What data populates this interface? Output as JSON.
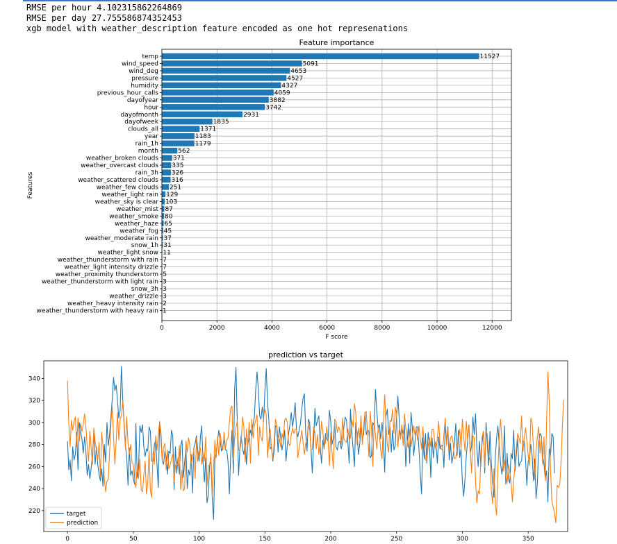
{
  "output_lines": [
    "RMSE per hour 4.102315862264869",
    "RMSE per day 27.755586874352453",
    "xgb model with weather_description feature encoded as one hot represenations"
  ],
  "chart_data": [
    {
      "type": "bar",
      "orientation": "horizontal",
      "title": "Feature importance",
      "xlabel": "F score",
      "ylabel": "Features",
      "xlim": [
        0,
        12700
      ],
      "xticks": [
        0,
        2000,
        4000,
        6000,
        8000,
        10000,
        12000
      ],
      "grid": true,
      "color": "#1f77b4",
      "categories": [
        "temp",
        "wind_speed",
        "wind_deg",
        "pressure",
        "humidity",
        "previous_hour_calls",
        "dayofyear",
        "hour",
        "dayofmonth",
        "dayofweek",
        "clouds_all",
        "year",
        "rain_1h",
        "month",
        "weather_broken clouds",
        "weather_overcast clouds",
        "rain_3h",
        "weather_scattered clouds",
        "weather_few clouds",
        "weather_light rain",
        "weather_sky is clear",
        "weather_mist",
        "weather_smoke",
        "weather_haze",
        "weather_fog",
        "weather_moderate rain",
        "snow_1h",
        "weather_light snow",
        "weather_thunderstorm with rain",
        "weather_light intensity drizzle",
        "weather_proximity thunderstorm",
        "weather_thunderstorm with light rain",
        "snow_3h",
        "weather_drizzle",
        "weather_heavy intensity rain",
        "weather_thunderstorm with heavy rain"
      ],
      "values": [
        11527,
        5091,
        4653,
        4527,
        4327,
        4059,
        3882,
        3742,
        2931,
        1835,
        1371,
        1183,
        1179,
        562,
        371,
        335,
        326,
        316,
        251,
        129,
        103,
        87,
        80,
        65,
        45,
        37,
        31,
        11,
        7,
        7,
        5,
        3,
        3,
        3,
        2,
        1
      ]
    },
    {
      "type": "line",
      "title": "prediction vs target",
      "xlim": [
        -18,
        380
      ],
      "ylim": [
        201,
        356
      ],
      "xticks": [
        0,
        50,
        100,
        150,
        200,
        250,
        300,
        350
      ],
      "yticks": [
        220,
        240,
        260,
        280,
        300,
        320,
        340
      ],
      "legend": "lower-left",
      "series": [
        {
          "name": "target",
          "color": "#1f77b4",
          "values": [
            283,
            257,
            266,
            247,
            278,
            266,
            271,
            291,
            257,
            300,
            291,
            285,
            272,
            287,
            274,
            252,
            262,
            249,
            258,
            271,
            290,
            262,
            278,
            262,
            253,
            247,
            258,
            242,
            280,
            264,
            300,
            279,
            289,
            305,
            321,
            341,
            329,
            334,
            320,
            304,
            311,
            351,
            321,
            300,
            279,
            269,
            243,
            277,
            252,
            256,
            249,
            244,
            299,
            250,
            259,
            297,
            291,
            298,
            278,
            269,
            276,
            274,
            296,
            292,
            265,
            265,
            280,
            284,
            262,
            241,
            300,
            291,
            265,
            262,
            274,
            269,
            253,
            274,
            272,
            293,
            288,
            239,
            278,
            254,
            268,
            253,
            279,
            284,
            250,
            264,
            277,
            240,
            257,
            252,
            271,
            236,
            277,
            281,
            288,
            275,
            265,
            287,
            297,
            264,
            246,
            268,
            227,
            234,
            262,
            264,
            231,
            212,
            268,
            273,
            284,
            293,
            283,
            274,
            278,
            284,
            275,
            275,
            264,
            235,
            271,
            293,
            254,
            330,
            350,
            302,
            252,
            277,
            288,
            276,
            271,
            286,
            262,
            280,
            285,
            293,
            288,
            298,
            305,
            330,
            346,
            330,
            306,
            303,
            314,
            301,
            329,
            349,
            318,
            302,
            276,
            278,
            265,
            274,
            297,
            296,
            273,
            296,
            286,
            275,
            282,
            293,
            265,
            279,
            290,
            298,
            309,
            296,
            305,
            318,
            293,
            287,
            293,
            299,
            312,
            322,
            326,
            290,
            274,
            303,
            300,
            276,
            254,
            282,
            313,
            297,
            302,
            306,
            278,
            263,
            284,
            276,
            290,
            285,
            283,
            311,
            301,
            280,
            286,
            300,
            278,
            275,
            282,
            283,
            276,
            282,
            296,
            305,
            302,
            282,
            263,
            312,
            291,
            276,
            260,
            300,
            291,
            271,
            280,
            295,
            286,
            289,
            309,
            289,
            293,
            292,
            268,
            270,
            300,
            297,
            330,
            310,
            295,
            298,
            285,
            300,
            284,
            255,
            306,
            312,
            289,
            296,
            273,
            293,
            275,
            279,
            305,
            324,
            304,
            285,
            296,
            290,
            298,
            260,
            280,
            299,
            263,
            309,
            295,
            270,
            282,
            296,
            296,
            276,
            254,
            235,
            286,
            267,
            290,
            263,
            291,
            280,
            250,
            286,
            268,
            283,
            280,
            263,
            287,
            276,
            279,
            279,
            259,
            298,
            283,
            296,
            266,
            281,
            263,
            270,
            282,
            299,
            270,
            293,
            268,
            276,
            246,
            233,
            249,
            270,
            283,
            298,
            272,
            279,
            305,
            289,
            308,
            277,
            260,
            283,
            260,
            282,
            292,
            254,
            300,
            279,
            261,
            292,
            263,
            246,
            232,
            268,
            286,
            297,
            280,
            263,
            253,
            263,
            297,
            244,
            272,
            249,
            245,
            272,
            267,
            293,
            256,
            271,
            285,
            260,
            264,
            265,
            283,
            283,
            266,
            243,
            265,
            268,
            280,
            270,
            247,
            267,
            231,
            245,
            282,
            290,
            288,
            270,
            262,
            249,
            256,
            228,
            276,
            270,
            290,
            287,
            254
          ]
        },
        {
          "name": "prediction",
          "color": "#ff7f0e",
          "values": [
            338,
            299,
            278,
            302,
            293,
            301,
            305,
            278,
            304,
            283,
            299,
            292,
            298,
            308,
            296,
            278,
            265,
            292,
            277,
            262,
            295,
            283,
            275,
            266,
            282,
            251,
            291,
            278,
            249,
            237,
            247,
            248,
            273,
            299,
            315,
            287,
            262,
            283,
            309,
            284,
            303,
            306,
            319,
            297,
            277,
            305,
            281,
            271,
            280,
            264,
            262,
            247,
            241,
            263,
            249,
            267,
            239,
            237,
            252,
            265,
            235,
            245,
            274,
            238,
            232,
            273,
            262,
            288,
            275,
            289,
            301,
            284,
            265,
            277,
            281,
            257,
            275,
            258,
            261,
            267,
            271,
            246,
            260,
            264,
            261,
            279,
            239,
            257,
            238,
            240,
            283,
            273,
            286,
            279,
            262,
            269,
            275,
            249,
            286,
            265,
            273,
            277,
            262,
            272,
            265,
            287,
            242,
            261,
            261,
            272,
            233,
            259,
            284,
            268,
            287,
            270,
            290,
            281,
            275,
            291,
            276,
            284,
            286,
            300,
            313,
            315,
            266,
            285,
            295,
            302,
            275,
            275,
            283,
            305,
            296,
            264,
            294,
            279,
            300,
            263,
            303,
            286,
            297,
            302,
            307,
            270,
            296,
            287,
            283,
            305,
            312,
            307,
            268,
            284,
            294,
            276,
            267,
            282,
            303,
            297,
            287,
            285,
            278,
            290,
            285,
            302,
            304,
            300,
            281,
            279,
            289,
            295,
            290,
            294,
            294,
            268,
            276,
            284,
            293,
            282,
            271,
            281,
            285,
            298,
            293,
            275,
            276,
            296,
            291,
            276,
            289,
            271,
            281,
            301,
            292,
            277,
            282,
            296,
            283,
            261,
            291,
            272,
            258,
            303,
            301,
            291,
            296,
            293,
            280,
            304,
            285,
            283,
            282,
            294,
            285,
            286,
            302,
            296,
            317,
            309,
            280,
            295,
            286,
            306,
            280,
            296,
            309,
            310,
            289,
            269,
            310,
            294,
            260,
            302,
            288,
            276,
            295,
            288,
            275,
            267,
            303,
            325,
            298,
            280,
            273,
            302,
            301,
            312,
            290,
            314,
            308,
            278,
            293,
            285,
            298,
            279,
            308,
            295,
            283,
            277,
            294,
            278,
            287,
            297,
            289,
            294,
            284,
            297,
            286,
            276,
            296,
            280,
            266,
            266,
            278,
            286,
            278,
            294,
            294,
            281,
            275,
            286,
            301,
            280,
            276,
            275,
            290,
            304,
            279,
            294,
            275,
            286,
            288,
            281,
            267,
            268,
            276,
            286,
            294,
            276,
            303,
            287,
            274,
            301,
            284,
            298,
            275,
            254,
            288,
            286,
            247,
            227,
            238,
            235,
            266,
            287,
            292,
            259,
            293,
            289,
            270,
            266,
            238,
            226,
            258,
            226,
            216,
            258,
            286,
            303,
            284,
            256,
            266,
            252,
            245,
            262,
            255,
            246,
            228,
            247,
            262,
            277,
            290,
            286,
            281,
            306,
            274,
            286,
            295,
            283,
            270,
            261,
            304,
            300,
            277,
            248,
            275,
            287,
            296,
            272,
            285,
            262,
            287,
            247,
            301,
            346,
            319,
            256,
            229,
            223,
            218,
            209,
            243,
            241,
            244,
            264,
            297,
            321
          ]
        }
      ]
    }
  ]
}
